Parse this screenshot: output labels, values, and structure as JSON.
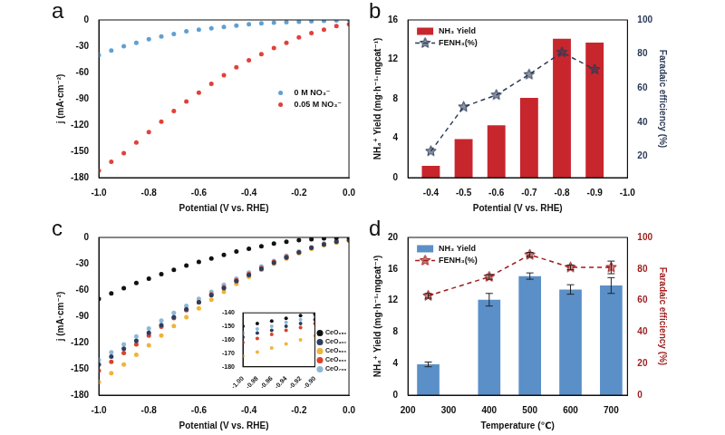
{
  "chart_data": [
    {
      "type": "scatter",
      "title": "a",
      "x_label": "Potential (V vs. RHE)",
      "y_label": "j (mA·cm⁻²)",
      "x": [
        -1,
        -0.95,
        -0.9,
        -0.85,
        -0.8,
        -0.75,
        -0.7,
        -0.65,
        -0.6,
        -0.55,
        -0.5,
        -0.45,
        -0.4,
        -0.35,
        -0.3,
        -0.25,
        -0.2,
        -0.15,
        -0.1,
        -0.05,
        0
      ],
      "xlim": [
        -1,
        0
      ],
      "xticks": [
        {
          "value": -1,
          "label": "-1.0"
        },
        -0.8,
        -0.6,
        -0.4,
        -0.2,
        {
          "value": 0,
          "label": "0.0"
        }
      ],
      "ylim": [
        -180,
        0
      ],
      "yticks": [
        -180,
        -150,
        -120,
        -90,
        -60,
        -30,
        0
      ],
      "grid": false,
      "legend": "center right",
      "series": [
        {
          "name": "0 M NO₃⁻",
          "color": "#5fa0d3",
          "marker": "circle",
          "values": [
            -40,
            -35,
            -30,
            -26,
            -22,
            -19,
            -16,
            -13,
            -11,
            -9.5,
            -8,
            -6.5,
            -5,
            -4,
            -3,
            -2.5,
            -2,
            -1.5,
            -1,
            -0.5,
            0
          ]
        },
        {
          "name": "0.05 M NO₃⁻",
          "color": "#e0413a",
          "marker": "circle",
          "values": [
            -172,
            -162,
            -152,
            -140,
            -128,
            -116,
            -104,
            -93,
            -83,
            -73,
            -63,
            -54,
            -46,
            -39,
            -32,
            -26,
            -20,
            -15,
            -11,
            -7,
            -5
          ]
        }
      ]
    },
    {
      "type": "bar",
      "title": "b",
      "x_label": "Potential (V vs. RHE)",
      "y_label": "NH₄⁺ Yield (mg·h⁻¹·mgcat⁻¹)",
      "y2_label": "Faradaic efficiency (%)",
      "x": [
        -0.4,
        -0.5,
        -0.6,
        -0.7,
        -0.8,
        -0.9
      ],
      "xlim": [
        -0.33,
        -1
      ],
      "xticks": [
        -0.4,
        -0.5,
        -0.6,
        -0.7,
        -0.8,
        -0.9,
        {
          "value": -1,
          "label": "-1.0"
        }
      ],
      "ylim": [
        0,
        16
      ],
      "yticks": [
        0,
        4,
        8,
        12,
        16
      ],
      "y2lim": [
        7.5,
        100
      ],
      "y2ticks": [
        20,
        40,
        60,
        80,
        100
      ],
      "grid": false,
      "legend": "upper left",
      "series": [
        {
          "name": "NH₃ Yield",
          "type": "bar",
          "color": "#c8262d",
          "values": [
            1.2,
            3.9,
            5.3,
            8.1,
            14.1,
            13.7
          ]
        },
        {
          "name": "FENH₃(%)",
          "type": "line",
          "axis": "y2",
          "color": "#2b3a57",
          "marker": "star",
          "line_style": "dashed",
          "values": [
            23,
            49,
            56,
            68,
            81,
            71
          ]
        }
      ]
    },
    {
      "type": "scatter",
      "title": "c",
      "x_label": "Potential (V vs. RHE)",
      "y_label": "j (mA·cm⁻²)",
      "x": [
        -1,
        -0.95,
        -0.9,
        -0.85,
        -0.8,
        -0.75,
        -0.7,
        -0.65,
        -0.6,
        -0.55,
        -0.5,
        -0.45,
        -0.4,
        -0.35,
        -0.3,
        -0.25,
        -0.2,
        -0.15,
        -0.1,
        -0.05,
        0
      ],
      "xlim": [
        -1,
        0
      ],
      "xticks": [
        {
          "value": -1,
          "label": "-1.0"
        },
        -0.8,
        -0.6,
        -0.4,
        -0.2,
        {
          "value": 0,
          "label": "0.0"
        }
      ],
      "ylim": [
        -180,
        0
      ],
      "yticks": [
        -180,
        -150,
        -120,
        -90,
        -60,
        -30,
        0
      ],
      "grid": false,
      "series": [
        {
          "color": "#111111",
          "marker": "circle",
          "values": [
            -70,
            -64,
            -58,
            -52,
            -47,
            -42,
            -37,
            -32,
            -28,
            -24,
            -20,
            -16,
            -13,
            -10,
            -7,
            -5,
            -3,
            -2,
            -1,
            -0.5,
            0
          ]
        },
        {
          "color": "#2e3d5e",
          "marker": "circle",
          "values": [
            -145,
            -136,
            -127,
            -118,
            -109,
            -100,
            -91,
            -82,
            -74,
            -66,
            -58,
            -50,
            -43,
            -36,
            -29,
            -23,
            -17,
            -12,
            -8,
            -5,
            -3
          ]
        },
        {
          "color": "#f0b43a",
          "marker": "circle",
          "values": [
            -165,
            -155,
            -145,
            -134,
            -123,
            -112,
            -101,
            -91,
            -81,
            -71,
            -62,
            -53,
            -45,
            -37,
            -30,
            -24,
            -18,
            -13,
            -9,
            -6,
            -4
          ]
        },
        {
          "color": "#d8432e",
          "marker": "circle",
          "values": [
            -152,
            -142,
            -132,
            -122,
            -112,
            -102,
            -92,
            -83,
            -74,
            -65,
            -57,
            -49,
            -42,
            -35,
            -28,
            -22,
            -17,
            -12,
            -8,
            -5,
            -3
          ]
        },
        {
          "color": "#8cb8d8",
          "marker": "circle",
          "values": [
            -140,
            -131,
            -122,
            -113,
            -104,
            -95,
            -86,
            -78,
            -70,
            -62,
            -54,
            -47,
            -40,
            -33,
            -27,
            -21,
            -16,
            -11,
            -7,
            -4,
            -2
          ]
        }
      ],
      "inset": {
        "type": "scatter",
        "x": [
          -1,
          -0.98,
          -0.96,
          -0.94,
          -0.92,
          -0.9
        ],
        "xlim": [
          -1,
          -0.9
        ],
        "xticks": [
          {
            "value": -1,
            "label": "-1.00"
          },
          -0.98,
          -0.96,
          -0.94,
          -0.92,
          {
            "value": -0.9,
            "label": "-0.90"
          }
        ],
        "ylim": [
          -180,
          -140
        ],
        "yticks": [
          -180,
          -170,
          -160,
          -150,
          -140
        ],
        "grid": false,
        "legend": "right",
        "series": [
          {
            "name": "CeO₂₅₀",
            "color": "#111111",
            "marker": "circle",
            "values": [
              -150,
              -148,
              -146,
              -144,
              -142,
              -141
            ]
          },
          {
            "name": "CeO₄₀₀",
            "color": "#2e3d5e",
            "marker": "circle",
            "values": [
              -158,
              -155,
              -153,
              -150,
              -148,
              -145
            ]
          },
          {
            "name": "CeO₅₀₀",
            "color": "#f0b43a",
            "marker": "circle",
            "values": [
              -172,
              -169,
              -166,
              -163,
              -160,
              -157
            ]
          },
          {
            "name": "CeO₆₀₀",
            "color": "#d8432e",
            "marker": "circle",
            "values": [
              -162,
              -159,
              -156,
              -153,
              -151,
              -148
            ]
          },
          {
            "name": "CeO₇₀₀",
            "color": "#8cb8d8",
            "marker": "circle",
            "values": [
              -155,
              -152,
              -150,
              -147,
              -145,
              -143
            ]
          }
        ]
      }
    },
    {
      "type": "bar",
      "title": "d",
      "x_label": "Temperature (℃)",
      "y_label": "NH₄⁺ Yield (mg·h⁻¹·mgcat⁻¹)",
      "y2_label": "Faradaic efficiency (%)",
      "x": [
        250,
        400,
        500,
        600,
        700
      ],
      "xlim": [
        200,
        740
      ],
      "xticks": [
        200,
        300,
        400,
        500,
        600,
        700
      ],
      "ylim": [
        0,
        20
      ],
      "yticks": [
        0,
        4,
        8,
        12,
        16,
        20
      ],
      "y2lim": [
        0,
        100
      ],
      "y2ticks": [
        0,
        20,
        40,
        60,
        80,
        100
      ],
      "grid": false,
      "legend": "upper left",
      "series": [
        {
          "name": "NH₃ Yield",
          "type": "bar",
          "color": "#5b8fc8",
          "values": [
            3.9,
            12.1,
            15.1,
            13.4,
            13.9
          ],
          "errors": [
            0.3,
            0.8,
            0.4,
            0.6,
            1.0
          ]
        },
        {
          "name": "FENH₃(%)",
          "type": "line",
          "axis": "y2",
          "color": "#9e1b1b",
          "marker": "star",
          "line_style": "dashed",
          "values": [
            63,
            75,
            89,
            81,
            81
          ],
          "errors": [
            1.5,
            1.5,
            1.5,
            1.5,
            4
          ]
        }
      ]
    }
  ]
}
